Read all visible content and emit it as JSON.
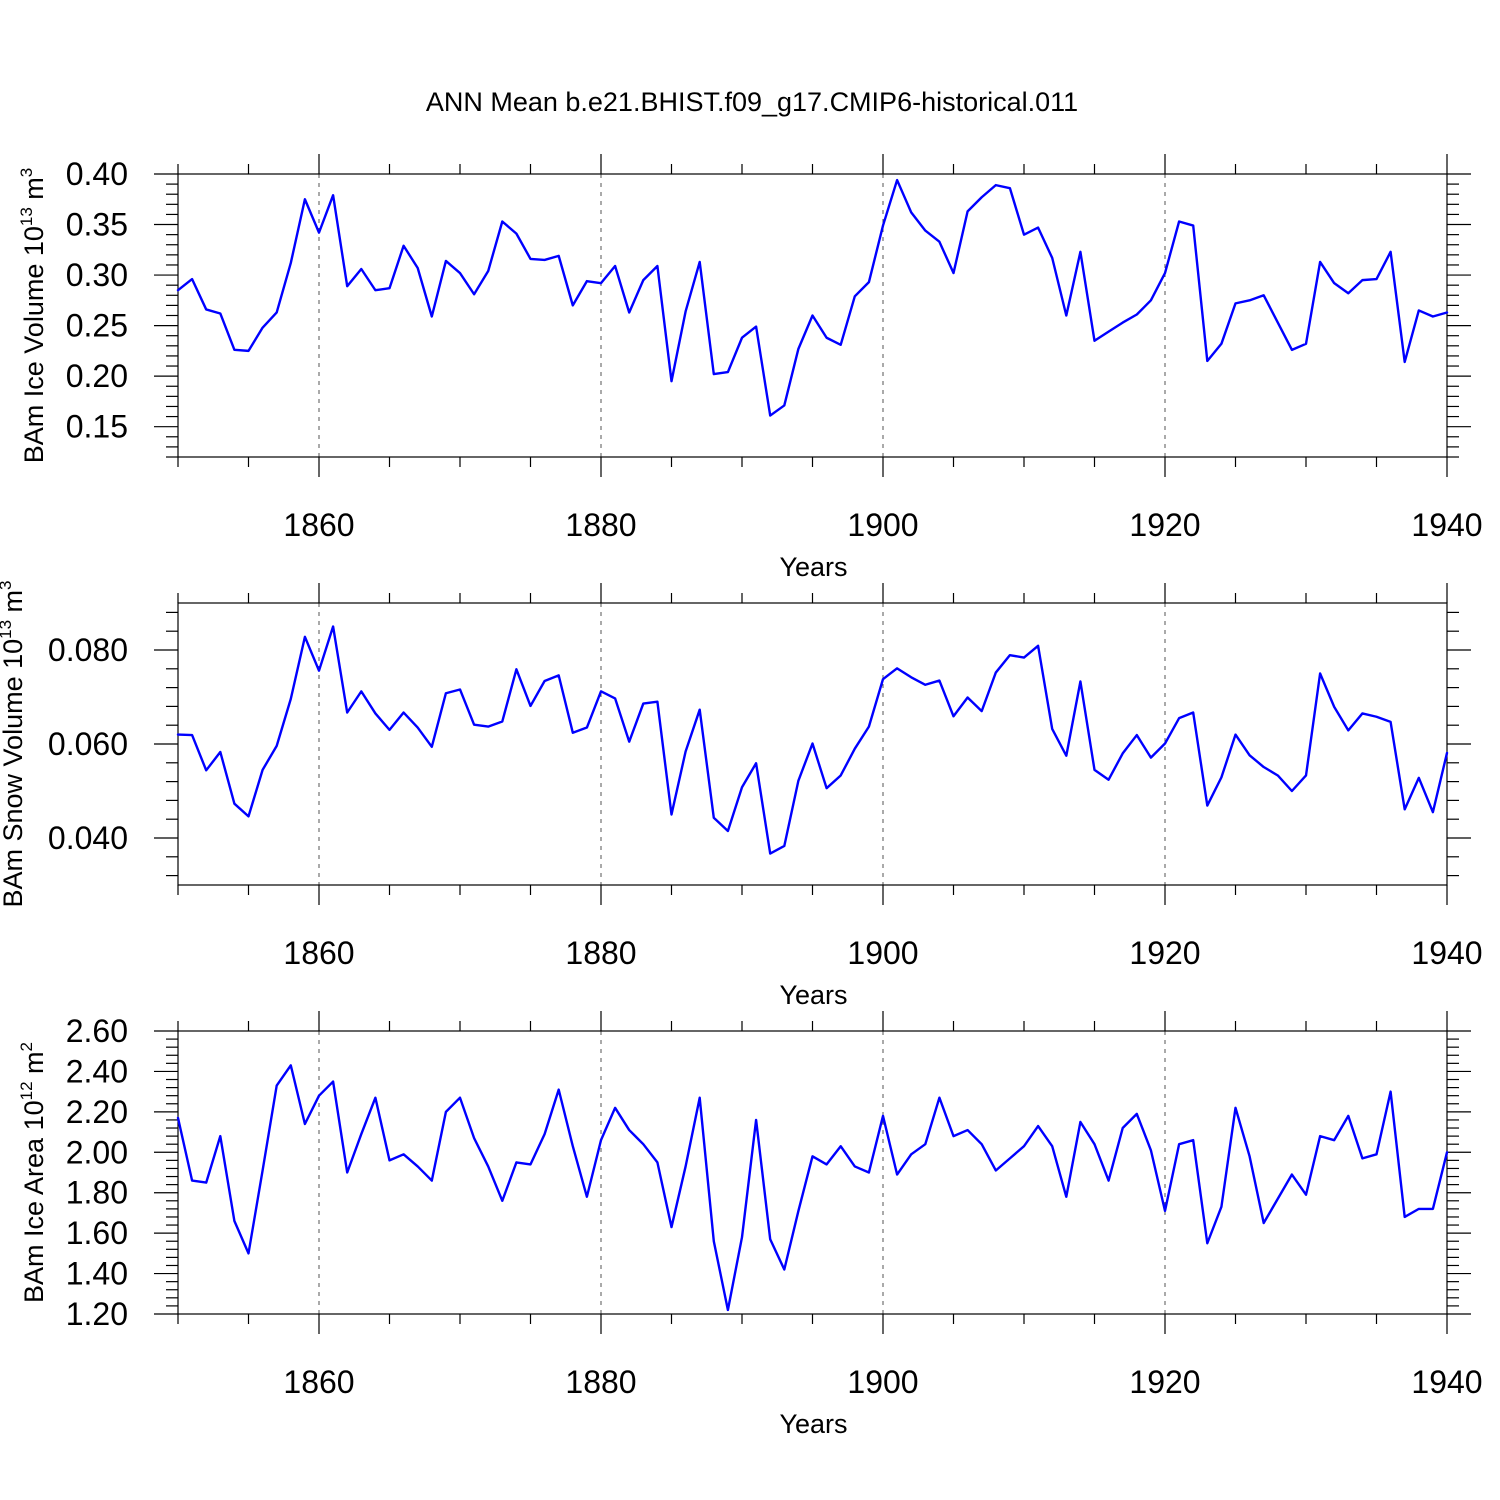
{
  "figure_title": "ANN Mean b.e21.BHIST.f09_g17.CMIP6-historical.011",
  "line_color": "#0000ff",
  "chart_data": [
    {
      "type": "line",
      "title": "ANN Mean b.e21.BHIST.f09_g17.CMIP6-historical.011",
      "xlabel": "Years",
      "ylabel_main": "BAm Ice Volume 10",
      "ylabel_exp": "13",
      "ylabel_unit": " m",
      "ylabel_unit_exp": "3",
      "xlim": [
        1850,
        1940
      ],
      "ylim": [
        0.12,
        0.4
      ],
      "xticks": [
        1860,
        1880,
        1900,
        1920,
        1940
      ],
      "yticks": [
        0.15,
        0.2,
        0.25,
        0.3,
        0.35,
        0.4
      ],
      "ytick_labels": [
        "0.15",
        "0.20",
        "0.25",
        "0.30",
        "0.35",
        "0.40"
      ],
      "series": [
        {
          "name": "BAm Ice Volume",
          "x_start": 1850,
          "values": [
            0.285,
            0.296,
            0.266,
            0.262,
            0.226,
            0.225,
            0.248,
            0.263,
            0.312,
            0.375,
            0.342,
            0.379,
            0.289,
            0.306,
            0.285,
            0.287,
            0.329,
            0.307,
            0.259,
            0.314,
            0.302,
            0.281,
            0.304,
            0.353,
            0.341,
            0.316,
            0.315,
            0.319,
            0.27,
            0.294,
            0.292,
            0.309,
            0.263,
            0.295,
            0.309,
            0.195,
            0.264,
            0.313,
            0.202,
            0.204,
            0.238,
            0.249,
            0.161,
            0.171,
            0.227,
            0.26,
            0.238,
            0.231,
            0.279,
            0.293,
            0.349,
            0.394,
            0.362,
            0.344,
            0.333,
            0.302,
            0.363,
            0.377,
            0.389,
            0.386,
            0.34,
            0.347,
            0.317,
            0.26,
            0.323,
            0.235,
            0.244,
            0.253,
            0.261,
            0.275,
            0.302,
            0.353,
            0.349,
            0.215,
            0.232,
            0.272,
            0.275,
            0.28,
            0.253,
            0.226,
            0.232,
            0.313,
            0.292,
            0.282,
            0.295,
            0.296,
            0.323,
            0.214,
            0.265,
            0.259,
            0.263
          ]
        }
      ]
    },
    {
      "type": "line",
      "xlabel": "Years",
      "ylabel_main": "BAm Snow Volume 10",
      "ylabel_exp": "13",
      "ylabel_unit": " m",
      "ylabel_unit_exp": "3",
      "xlim": [
        1850,
        1940
      ],
      "ylim": [
        0.03,
        0.09
      ],
      "xticks": [
        1860,
        1880,
        1900,
        1920,
        1940
      ],
      "yticks": [
        0.04,
        0.06,
        0.08
      ],
      "ytick_labels": [
        "0.040",
        "0.060",
        "0.080"
      ],
      "series": [
        {
          "name": "BAm Snow Volume",
          "x_start": 1850,
          "values": [
            0.062,
            0.0619,
            0.0544,
            0.0583,
            0.0473,
            0.0446,
            0.0545,
            0.0596,
            0.0696,
            0.0828,
            0.0756,
            0.085,
            0.0667,
            0.0712,
            0.0665,
            0.063,
            0.0667,
            0.0635,
            0.0594,
            0.0708,
            0.0716,
            0.0641,
            0.0637,
            0.0648,
            0.0759,
            0.0681,
            0.0734,
            0.0746,
            0.0624,
            0.0635,
            0.0712,
            0.0697,
            0.0605,
            0.0686,
            0.069,
            0.045,
            0.0584,
            0.0673,
            0.0443,
            0.0415,
            0.0508,
            0.0559,
            0.0367,
            0.0383,
            0.0522,
            0.0601,
            0.0506,
            0.0533,
            0.059,
            0.0637,
            0.0738,
            0.0761,
            0.0742,
            0.0726,
            0.0735,
            0.0659,
            0.0699,
            0.067,
            0.0752,
            0.0789,
            0.0784,
            0.0809,
            0.0632,
            0.0575,
            0.0733,
            0.0545,
            0.0524,
            0.058,
            0.0619,
            0.0571,
            0.0601,
            0.0655,
            0.0667,
            0.0469,
            0.0529,
            0.062,
            0.0576,
            0.0551,
            0.0533,
            0.05,
            0.0533,
            0.075,
            0.0679,
            0.0629,
            0.0665,
            0.0658,
            0.0647,
            0.0461,
            0.0528,
            0.0455,
            0.0581
          ]
        }
      ]
    },
    {
      "type": "line",
      "xlabel": "Years",
      "ylabel_main": "BAm Ice Area 10",
      "ylabel_exp": "12",
      "ylabel_unit": " m",
      "ylabel_unit_exp": "2",
      "xlim": [
        1850,
        1940
      ],
      "ylim": [
        1.2,
        2.6
      ],
      "xticks": [
        1860,
        1880,
        1900,
        1920,
        1940
      ],
      "yticks": [
        1.2,
        1.4,
        1.6,
        1.8,
        2.0,
        2.2,
        2.4,
        2.6
      ],
      "ytick_labels": [
        "1.20",
        "1.40",
        "1.60",
        "1.80",
        "2.00",
        "2.20",
        "2.40",
        "2.60"
      ],
      "series": [
        {
          "name": "BAm Ice Area",
          "x_start": 1850,
          "values": [
            2.17,
            1.86,
            1.85,
            2.08,
            1.66,
            1.5,
            1.91,
            2.33,
            2.43,
            2.14,
            2.28,
            2.35,
            1.9,
            2.09,
            2.27,
            1.96,
            1.99,
            1.93,
            1.86,
            2.2,
            2.27,
            2.07,
            1.93,
            1.76,
            1.95,
            1.94,
            2.09,
            2.31,
            2.03,
            1.78,
            2.06,
            2.22,
            2.11,
            2.04,
            1.95,
            1.63,
            1.93,
            2.27,
            1.56,
            1.22,
            1.58,
            2.16,
            1.57,
            1.42,
            1.71,
            1.98,
            1.94,
            2.03,
            1.93,
            1.9,
            2.18,
            1.89,
            1.99,
            2.04,
            2.27,
            2.08,
            2.11,
            2.04,
            1.91,
            1.97,
            2.03,
            2.13,
            2.03,
            1.78,
            2.15,
            2.04,
            1.86,
            2.12,
            2.19,
            2.01,
            1.71,
            2.04,
            2.06,
            1.55,
            1.73,
            2.22,
            1.98,
            1.65,
            1.77,
            1.89,
            1.79,
            2.08,
            2.06,
            2.18,
            1.97,
            1.99,
            2.3,
            1.68,
            1.72,
            1.72,
            2.0
          ]
        }
      ]
    }
  ]
}
